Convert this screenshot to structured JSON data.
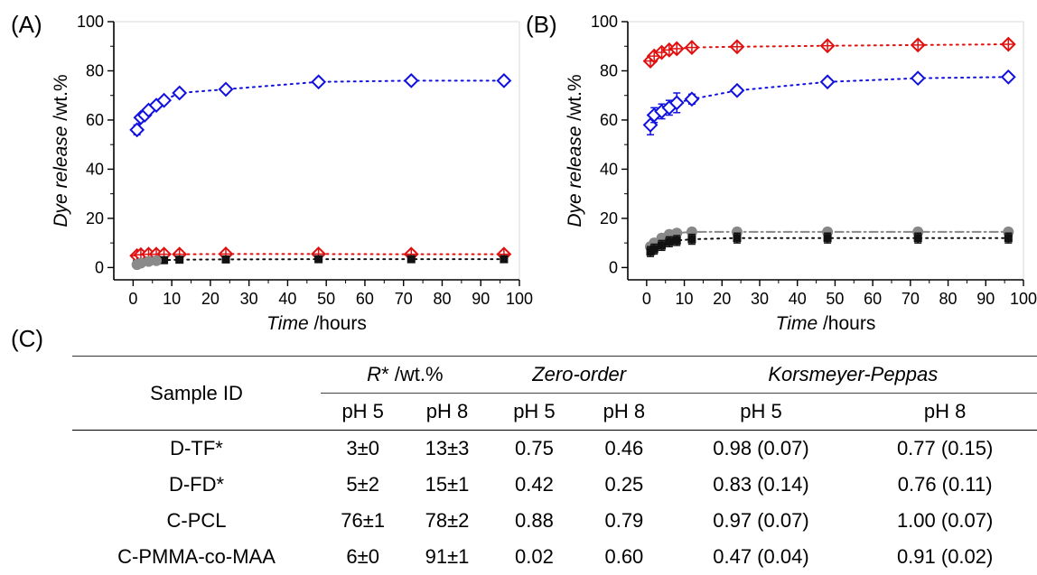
{
  "panels": {
    "a": "(A)",
    "b": "(B)",
    "c": "(C)"
  },
  "chart_data": [
    {
      "type": "scatter",
      "panel": "(A)",
      "xlabel_italic": "Time",
      "xlabel_rest": " /hours",
      "ylabel_italic": "Dye release",
      "ylabel_rest": " /wt.%",
      "xlim": [
        -5,
        100
      ],
      "ylim": [
        -5,
        100
      ],
      "xticks": [
        0,
        10,
        20,
        30,
        40,
        50,
        60,
        70,
        80,
        90,
        100
      ],
      "yticks": [
        0,
        20,
        40,
        60,
        80,
        100
      ],
      "grid": false,
      "series": [
        {
          "marker": "open-diamond",
          "color": "#1010e0",
          "x": [
            1,
            2,
            3,
            4,
            6,
            8,
            12,
            24,
            48,
            72,
            96
          ],
          "y": [
            56,
            61,
            62,
            64,
            66,
            68,
            71,
            72.5,
            75.5,
            76,
            76
          ],
          "err": [
            2,
            1,
            1,
            1,
            1,
            1,
            1,
            1,
            1,
            1,
            1
          ]
        },
        {
          "marker": "crossed-diamond",
          "color": "#e01010",
          "x": [
            1,
            2,
            4,
            6,
            8,
            12,
            24,
            48,
            72,
            96
          ],
          "y": [
            4.8,
            5.2,
            5.4,
            5.4,
            5.4,
            5.4,
            5.5,
            5.5,
            5.4,
            5.4
          ],
          "err": [
            1,
            1,
            1,
            1,
            1,
            1,
            1,
            1,
            1,
            1
          ]
        },
        {
          "marker": "square",
          "color": "#111111",
          "x": [
            1,
            2,
            4,
            6,
            8,
            12,
            24,
            48,
            72,
            96
          ],
          "y": [
            1.5,
            2,
            2.5,
            2.8,
            3,
            3.2,
            3.3,
            3.4,
            3.4,
            3.4
          ],
          "err": [
            0.5,
            0.5,
            0.5,
            0.5,
            0.5,
            0.5,
            0.5,
            0.5,
            0.5,
            0.5
          ]
        },
        {
          "marker": "circle",
          "color": "#8a8a8a",
          "x": [
            1,
            2,
            4,
            6
          ],
          "y": [
            1.2,
            1.8,
            2.5,
            2.8
          ],
          "err": [
            0.3,
            0.3,
            0.3,
            0.3
          ]
        }
      ]
    },
    {
      "type": "scatter",
      "panel": "(B)",
      "xlabel_italic": "Time",
      "xlabel_rest": " /hours",
      "ylabel_italic": "Dye release",
      "ylabel_rest": " /wt.%",
      "xlim": [
        -5,
        100
      ],
      "ylim": [
        -5,
        100
      ],
      "xticks": [
        0,
        10,
        20,
        30,
        40,
        50,
        60,
        70,
        80,
        90,
        100
      ],
      "yticks": [
        0,
        20,
        40,
        60,
        80,
        100
      ],
      "grid": false,
      "series": [
        {
          "marker": "crossed-diamond",
          "color": "#e01010",
          "x": [
            1,
            2,
            4,
            6,
            8,
            12,
            24,
            48,
            72,
            96
          ],
          "y": [
            84,
            86,
            87.5,
            88.5,
            89,
            89.5,
            89.8,
            90.2,
            90.5,
            90.8
          ],
          "err": [
            1,
            1,
            1,
            1,
            1,
            1,
            1,
            1,
            1,
            1
          ]
        },
        {
          "marker": "open-diamond",
          "color": "#1010e0",
          "x": [
            1,
            2,
            4,
            6,
            8,
            12,
            24,
            48,
            72,
            96
          ],
          "y": [
            58,
            62,
            63.5,
            65,
            67,
            68.5,
            72,
            75.5,
            77,
            77.5
          ],
          "err": [
            4,
            3,
            3,
            3,
            4,
            2,
            1.5,
            1,
            1,
            1
          ]
        },
        {
          "marker": "circle",
          "color": "#888888",
          "x": [
            1,
            2,
            4,
            6,
            8,
            12,
            24,
            48,
            72,
            96
          ],
          "y": [
            8.5,
            10,
            12,
            13.5,
            14,
            14.5,
            14.5,
            14.5,
            14.5,
            14.5
          ],
          "err": [
            1.5,
            1.5,
            1.5,
            1.5,
            1.5,
            1.5,
            1.5,
            1.5,
            1.5,
            1.5
          ]
        },
        {
          "marker": "square",
          "color": "#111111",
          "x": [
            1,
            2,
            4,
            6,
            8,
            12,
            24,
            48,
            72,
            96
          ],
          "y": [
            6.5,
            7.5,
            9,
            10.5,
            11,
            11.5,
            12,
            12,
            12,
            12
          ],
          "err": [
            2,
            2,
            2,
            2,
            2,
            2,
            2,
            2,
            2,
            2
          ]
        }
      ]
    },
    {
      "type": "table",
      "panel": "(C)",
      "header": {
        "sample_id": "Sample ID",
        "group_r_italic": "R",
        "group_r_rest": "* /wt.%",
        "group_zero": "Zero-order",
        "group_kp": "Korsmeyer-Peppas",
        "sub": [
          "pH 5",
          "pH 8",
          "pH 5",
          "pH 8",
          "pH 5",
          "pH 8"
        ]
      },
      "rows": [
        {
          "id": "D-TF*",
          "cells": [
            "3±0",
            "13±3",
            "0.75",
            "0.46",
            "0.98 (0.07)",
            "0.77 (0.15)"
          ]
        },
        {
          "id": "D-FD*",
          "cells": [
            "5±2",
            "15±1",
            "0.42",
            "0.25",
            "0.83 (0.14)",
            "0.76 (0.11)"
          ]
        },
        {
          "id": "C-PCL",
          "cells": [
            "76±1",
            "78±2",
            "0.88",
            "0.79",
            "0.97 (0.07)",
            "1.00 (0.07)"
          ]
        },
        {
          "id": "C-PMMA-co-MAA",
          "cells": [
            "6±0",
            "91±1",
            "0.02",
            "0.60",
            "0.47 (0.04)",
            "0.91 (0.02)"
          ]
        }
      ]
    }
  ]
}
